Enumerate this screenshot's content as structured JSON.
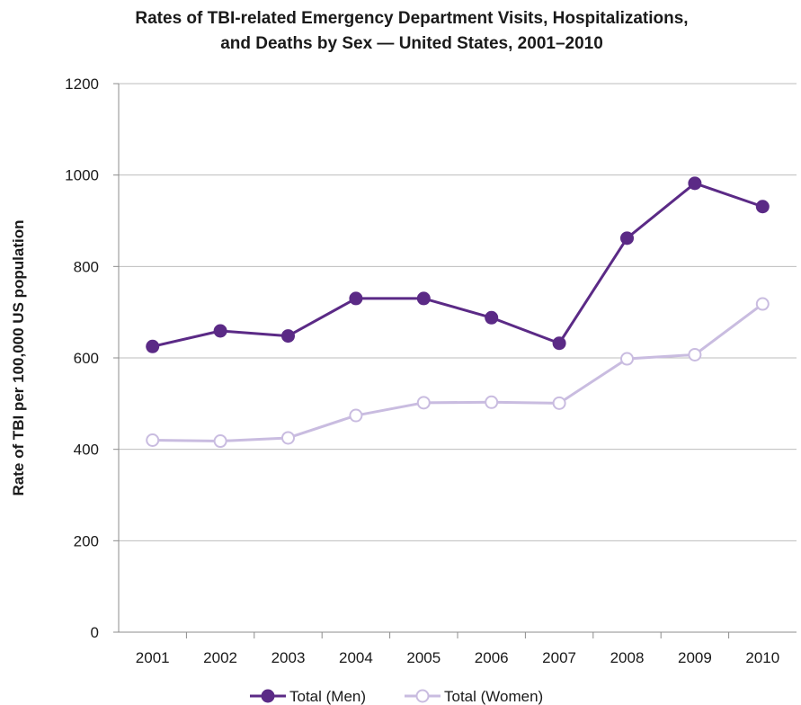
{
  "chart_data": {
    "type": "line",
    "title_line1": "Rates of TBI-related Emergency Department Visits, Hospitalizations,",
    "title_line2": "and Deaths by Sex — United States, 2001–2010",
    "xlabel": "",
    "ylabel": "Rate of TBI per 100,000 US population",
    "categories": [
      "2001",
      "2002",
      "2003",
      "2004",
      "2005",
      "2006",
      "2007",
      "2008",
      "2009",
      "2010"
    ],
    "ylim": [
      0,
      1200
    ],
    "yticks": [
      "0",
      "200",
      "400",
      "600",
      "800",
      "1000",
      "1200"
    ],
    "grid": true,
    "legend_position": "bottom",
    "series": [
      {
        "name": "Total (Men)",
        "values": [
          625,
          659,
          648,
          730,
          730,
          688,
          632,
          862,
          982,
          931
        ],
        "color": "#5b2a86",
        "marker": "filled-circle"
      },
      {
        "name": "Total (Women)",
        "values": [
          420,
          418,
          425,
          474,
          502,
          503,
          501,
          598,
          607,
          718
        ],
        "color": "#c9bce0",
        "marker": "hollow-circle"
      }
    ]
  }
}
